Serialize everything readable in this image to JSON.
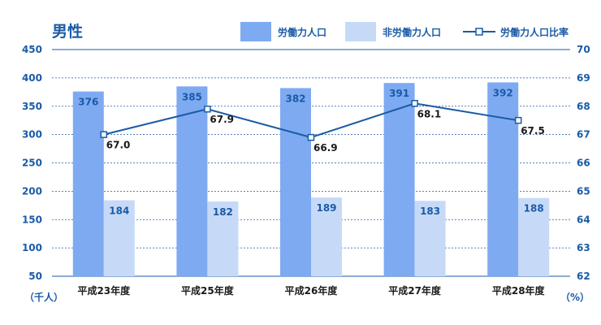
{
  "colors": {
    "labor": "#7eaaf2",
    "nonlabor": "#c6daf8",
    "ratio_line": "#1a5ba6",
    "text": "#1a5ba6",
    "grid": "#1a5ba6"
  },
  "chart_data": {
    "type": "bar",
    "title": "男性",
    "categories": [
      "平成23年度",
      "平成25年度",
      "平成26年度",
      "平成27年度",
      "平成28年度"
    ],
    "series": [
      {
        "name": "労働力人口",
        "type": "bar",
        "axis": "left",
        "values": [
          376,
          385,
          382,
          391,
          392
        ]
      },
      {
        "name": "非労働力人口",
        "type": "bar",
        "axis": "left",
        "values": [
          184,
          182,
          189,
          183,
          188
        ]
      },
      {
        "name": "労働力人口比率",
        "type": "line",
        "axis": "right",
        "values": [
          67.0,
          67.9,
          66.9,
          68.1,
          67.5
        ]
      }
    ],
    "y_left": {
      "min": 50,
      "max": 450,
      "step": 50,
      "unit": "（千人）",
      "ticks": [
        "50",
        "100",
        "150",
        "200",
        "250",
        "300",
        "350",
        "400",
        "450"
      ]
    },
    "y_right": {
      "min": 62,
      "max": 70,
      "step": 1,
      "unit": "（%）",
      "ticks": [
        "62",
        "63",
        "64",
        "65",
        "66",
        "67",
        "68",
        "69",
        "70"
      ]
    },
    "grid": true,
    "legend_position": "top-right"
  }
}
